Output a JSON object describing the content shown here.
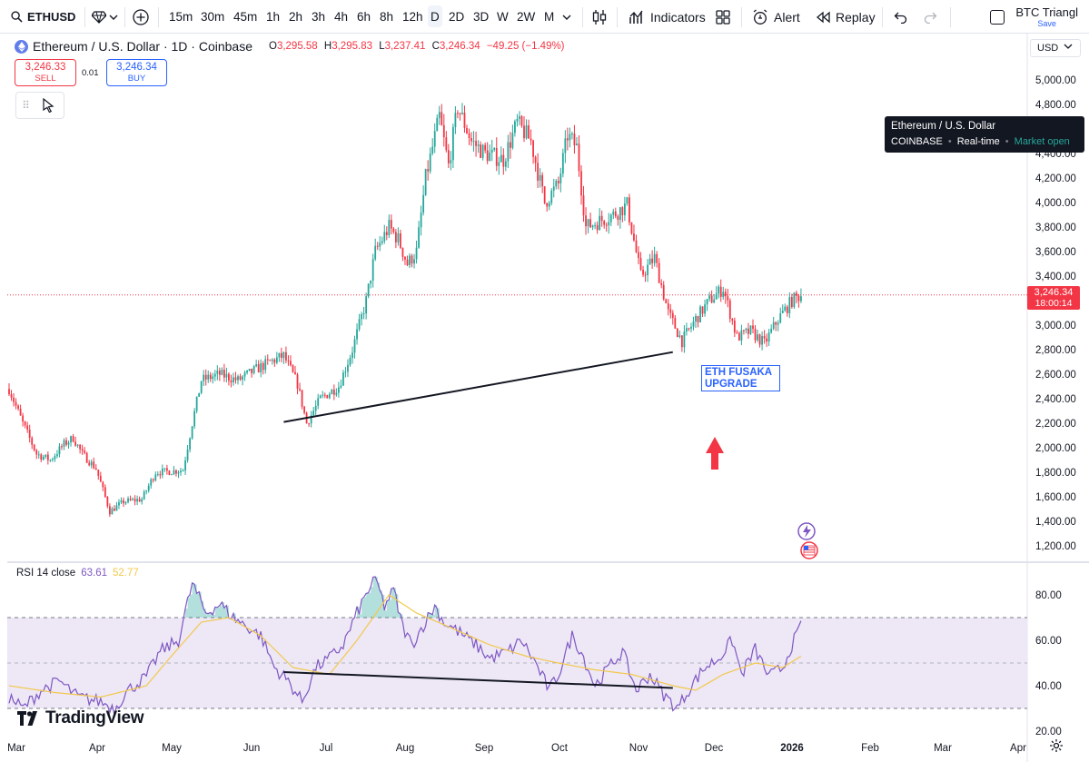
{
  "toolbar": {
    "symbol": "ETHUSD",
    "intervals": [
      "15m",
      "30m",
      "45m",
      "1h",
      "2h",
      "3h",
      "4h",
      "6h",
      "8h",
      "12h",
      "D",
      "2D",
      "3D",
      "W",
      "2W",
      "M"
    ],
    "active_interval": "D",
    "indicators_label": "Indicators",
    "alert_label": "Alert",
    "replay_label": "Replay",
    "layout_name": "BTC Triangl",
    "layout_save": "Save"
  },
  "legend": {
    "title": "Ethereum / U.S. Dollar · 1D · Coinbase",
    "open_label": "O",
    "open": "3,295.58",
    "high_label": "H",
    "high": "3,295.83",
    "low_label": "L",
    "low": "3,237.41",
    "close_label": "C",
    "close": "3,246.34",
    "change": "−49.25 (−1.49%)"
  },
  "trade": {
    "sell_price": "3,246.33",
    "sell_label": "SELL",
    "spread": "0.01",
    "buy_price": "3,246.34",
    "buy_label": "BUY"
  },
  "price_scale": {
    "currency": "USD",
    "current_price": "3,246.34",
    "countdown": "18:00:14"
  },
  "tooltip": {
    "name": "Ethereum / U.S. Dollar",
    "exchange": "COINBASE",
    "feed": "Real-time",
    "status": "Market open"
  },
  "annotation": {
    "line1": "ETH FUSAKA",
    "line2": "UPGRADE"
  },
  "rsi": {
    "label": "RSI 14 close",
    "value": "63.61",
    "ma_value": "52.77"
  },
  "branding": {
    "logo_text": "TradingView"
  },
  "colors": {
    "up": "#26a69a",
    "down": "#f23645",
    "rsi": "#7e57c2",
    "rsi_ma": "#f2c94c",
    "accent": "#2962ff",
    "band": "#ede7f6"
  },
  "chart_data": [
    {
      "type": "candlestick",
      "title": "Ethereum / U.S. Dollar · 1D · Coinbase",
      "x_ticks": [
        "Mar",
        "Apr",
        "May",
        "Jun",
        "Jul",
        "Aug",
        "Sep",
        "Oct",
        "Nov",
        "Dec",
        "2026",
        "Feb",
        "Mar",
        "Apr"
      ],
      "y_ticks": [
        "5,000.00",
        "4,800.00",
        "4,600.00",
        "4,400.00",
        "4,200.00",
        "4,000.00",
        "3,800.00",
        "3,600.00",
        "3,400.00",
        "3,200.00",
        "3,000.00",
        "2,800.00",
        "2,600.00",
        "2,400.00",
        "2,200.00",
        "2,000.00",
        "1,800.00",
        "1,600.00",
        "1,400.00",
        "1,200.00"
      ],
      "ylim": [
        1100,
        5180
      ],
      "close_path": [
        {
          "d": 0,
          "v": 2480
        },
        {
          "d": 6,
          "v": 2200
        },
        {
          "d": 12,
          "v": 1950
        },
        {
          "d": 18,
          "v": 1900
        },
        {
          "d": 24,
          "v": 2030
        },
        {
          "d": 28,
          "v": 2080
        },
        {
          "d": 32,
          "v": 1950
        },
        {
          "d": 38,
          "v": 1830
        },
        {
          "d": 44,
          "v": 1480
        },
        {
          "d": 50,
          "v": 1560
        },
        {
          "d": 58,
          "v": 1580
        },
        {
          "d": 64,
          "v": 1800
        },
        {
          "d": 72,
          "v": 1810
        },
        {
          "d": 76,
          "v": 1820
        },
        {
          "d": 80,
          "v": 2200
        },
        {
          "d": 84,
          "v": 2550
        },
        {
          "d": 92,
          "v": 2600
        },
        {
          "d": 100,
          "v": 2550
        },
        {
          "d": 108,
          "v": 2640
        },
        {
          "d": 114,
          "v": 2700
        },
        {
          "d": 120,
          "v": 2750
        },
        {
          "d": 126,
          "v": 2520
        },
        {
          "d": 130,
          "v": 2200
        },
        {
          "d": 136,
          "v": 2400
        },
        {
          "d": 144,
          "v": 2500
        },
        {
          "d": 150,
          "v": 2800
        },
        {
          "d": 156,
          "v": 3200
        },
        {
          "d": 160,
          "v": 3600
        },
        {
          "d": 166,
          "v": 3800
        },
        {
          "d": 170,
          "v": 3700
        },
        {
          "d": 174,
          "v": 3500
        },
        {
          "d": 178,
          "v": 3600
        },
        {
          "d": 182,
          "v": 4200
        },
        {
          "d": 188,
          "v": 4700
        },
        {
          "d": 192,
          "v": 4300
        },
        {
          "d": 196,
          "v": 4780
        },
        {
          "d": 202,
          "v": 4500
        },
        {
          "d": 208,
          "v": 4400
        },
        {
          "d": 216,
          "v": 4350
        },
        {
          "d": 222,
          "v": 4650
        },
        {
          "d": 228,
          "v": 4500
        },
        {
          "d": 234,
          "v": 4000
        },
        {
          "d": 240,
          "v": 4150
        },
        {
          "d": 244,
          "v": 4550
        },
        {
          "d": 248,
          "v": 4450
        },
        {
          "d": 252,
          "v": 3800
        },
        {
          "d": 258,
          "v": 3850
        },
        {
          "d": 264,
          "v": 3900
        },
        {
          "d": 270,
          "v": 3980
        },
        {
          "d": 276,
          "v": 3400
        },
        {
          "d": 282,
          "v": 3550
        },
        {
          "d": 288,
          "v": 3100
        },
        {
          "d": 294,
          "v": 2870
        },
        {
          "d": 300,
          "v": 3050
        },
        {
          "d": 306,
          "v": 3200
        },
        {
          "d": 312,
          "v": 3300
        },
        {
          "d": 318,
          "v": 2900
        },
        {
          "d": 324,
          "v": 2950
        },
        {
          "d": 330,
          "v": 2850
        },
        {
          "d": 336,
          "v": 3050
        },
        {
          "d": 342,
          "v": 3200
        },
        {
          "d": 346,
          "v": 3246
        }
      ],
      "trendlines": [
        {
          "name": "price-support",
          "from": {
            "d": 120,
            "v": 2210
          },
          "to": {
            "d": 290,
            "v": 2780
          }
        }
      ],
      "annotation": "ETH FUSAKA UPGRADE"
    },
    {
      "type": "line",
      "title": "RSI 14 close",
      "series": [
        {
          "name": "RSI",
          "value": 63.61
        },
        {
          "name": "RSI-based MA",
          "value": 52.77
        }
      ],
      "y_ticks": [
        "80.00",
        "60.00",
        "40.00",
        "20.00"
      ],
      "bands": {
        "upper": 70,
        "middle": 50,
        "lower": 30
      },
      "ylim": [
        18,
        88
      ],
      "rsi_path": [
        {
          "d": 0,
          "v": 35
        },
        {
          "d": 6,
          "v": 30
        },
        {
          "d": 14,
          "v": 38
        },
        {
          "d": 22,
          "v": 42
        },
        {
          "d": 30,
          "v": 35
        },
        {
          "d": 40,
          "v": 33
        },
        {
          "d": 46,
          "v": 30
        },
        {
          "d": 52,
          "v": 38
        },
        {
          "d": 60,
          "v": 44
        },
        {
          "d": 66,
          "v": 55
        },
        {
          "d": 74,
          "v": 60
        },
        {
          "d": 80,
          "v": 85
        },
        {
          "d": 86,
          "v": 72
        },
        {
          "d": 92,
          "v": 76
        },
        {
          "d": 98,
          "v": 70
        },
        {
          "d": 104,
          "v": 66
        },
        {
          "d": 110,
          "v": 62
        },
        {
          "d": 116,
          "v": 48
        },
        {
          "d": 122,
          "v": 42
        },
        {
          "d": 128,
          "v": 33
        },
        {
          "d": 134,
          "v": 48
        },
        {
          "d": 140,
          "v": 52
        },
        {
          "d": 146,
          "v": 58
        },
        {
          "d": 152,
          "v": 72
        },
        {
          "d": 156,
          "v": 80
        },
        {
          "d": 160,
          "v": 88
        },
        {
          "d": 164,
          "v": 75
        },
        {
          "d": 168,
          "v": 82
        },
        {
          "d": 172,
          "v": 66
        },
        {
          "d": 176,
          "v": 58
        },
        {
          "d": 180,
          "v": 65
        },
        {
          "d": 186,
          "v": 75
        },
        {
          "d": 190,
          "v": 68
        },
        {
          "d": 196,
          "v": 64
        },
        {
          "d": 204,
          "v": 58
        },
        {
          "d": 210,
          "v": 52
        },
        {
          "d": 218,
          "v": 55
        },
        {
          "d": 224,
          "v": 60
        },
        {
          "d": 230,
          "v": 50
        },
        {
          "d": 236,
          "v": 38
        },
        {
          "d": 240,
          "v": 45
        },
        {
          "d": 246,
          "v": 62
        },
        {
          "d": 250,
          "v": 55
        },
        {
          "d": 256,
          "v": 40
        },
        {
          "d": 262,
          "v": 48
        },
        {
          "d": 268,
          "v": 55
        },
        {
          "d": 274,
          "v": 38
        },
        {
          "d": 280,
          "v": 45
        },
        {
          "d": 286,
          "v": 36
        },
        {
          "d": 292,
          "v": 30
        },
        {
          "d": 298,
          "v": 40
        },
        {
          "d": 304,
          "v": 48
        },
        {
          "d": 310,
          "v": 52
        },
        {
          "d": 316,
          "v": 60
        },
        {
          "d": 320,
          "v": 45
        },
        {
          "d": 326,
          "v": 56
        },
        {
          "d": 332,
          "v": 44
        },
        {
          "d": 338,
          "v": 48
        },
        {
          "d": 342,
          "v": 58
        },
        {
          "d": 346,
          "v": 66
        }
      ],
      "ma_path": [
        {
          "d": 0,
          "v": 40
        },
        {
          "d": 20,
          "v": 37
        },
        {
          "d": 40,
          "v": 35
        },
        {
          "d": 60,
          "v": 40
        },
        {
          "d": 70,
          "v": 52
        },
        {
          "d": 84,
          "v": 68
        },
        {
          "d": 96,
          "v": 70
        },
        {
          "d": 110,
          "v": 62
        },
        {
          "d": 124,
          "v": 48
        },
        {
          "d": 140,
          "v": 45
        },
        {
          "d": 152,
          "v": 60
        },
        {
          "d": 166,
          "v": 80
        },
        {
          "d": 178,
          "v": 72
        },
        {
          "d": 192,
          "v": 66
        },
        {
          "d": 210,
          "v": 58
        },
        {
          "d": 226,
          "v": 53
        },
        {
          "d": 240,
          "v": 50
        },
        {
          "d": 256,
          "v": 47
        },
        {
          "d": 272,
          "v": 45
        },
        {
          "d": 290,
          "v": 40
        },
        {
          "d": 300,
          "v": 38
        },
        {
          "d": 312,
          "v": 45
        },
        {
          "d": 326,
          "v": 50
        },
        {
          "d": 338,
          "v": 48
        },
        {
          "d": 346,
          "v": 53
        }
      ],
      "trendlines": [
        {
          "name": "rsi-divergence",
          "from": {
            "d": 120,
            "v": 46
          },
          "to": {
            "d": 290,
            "v": 39
          }
        }
      ]
    }
  ]
}
